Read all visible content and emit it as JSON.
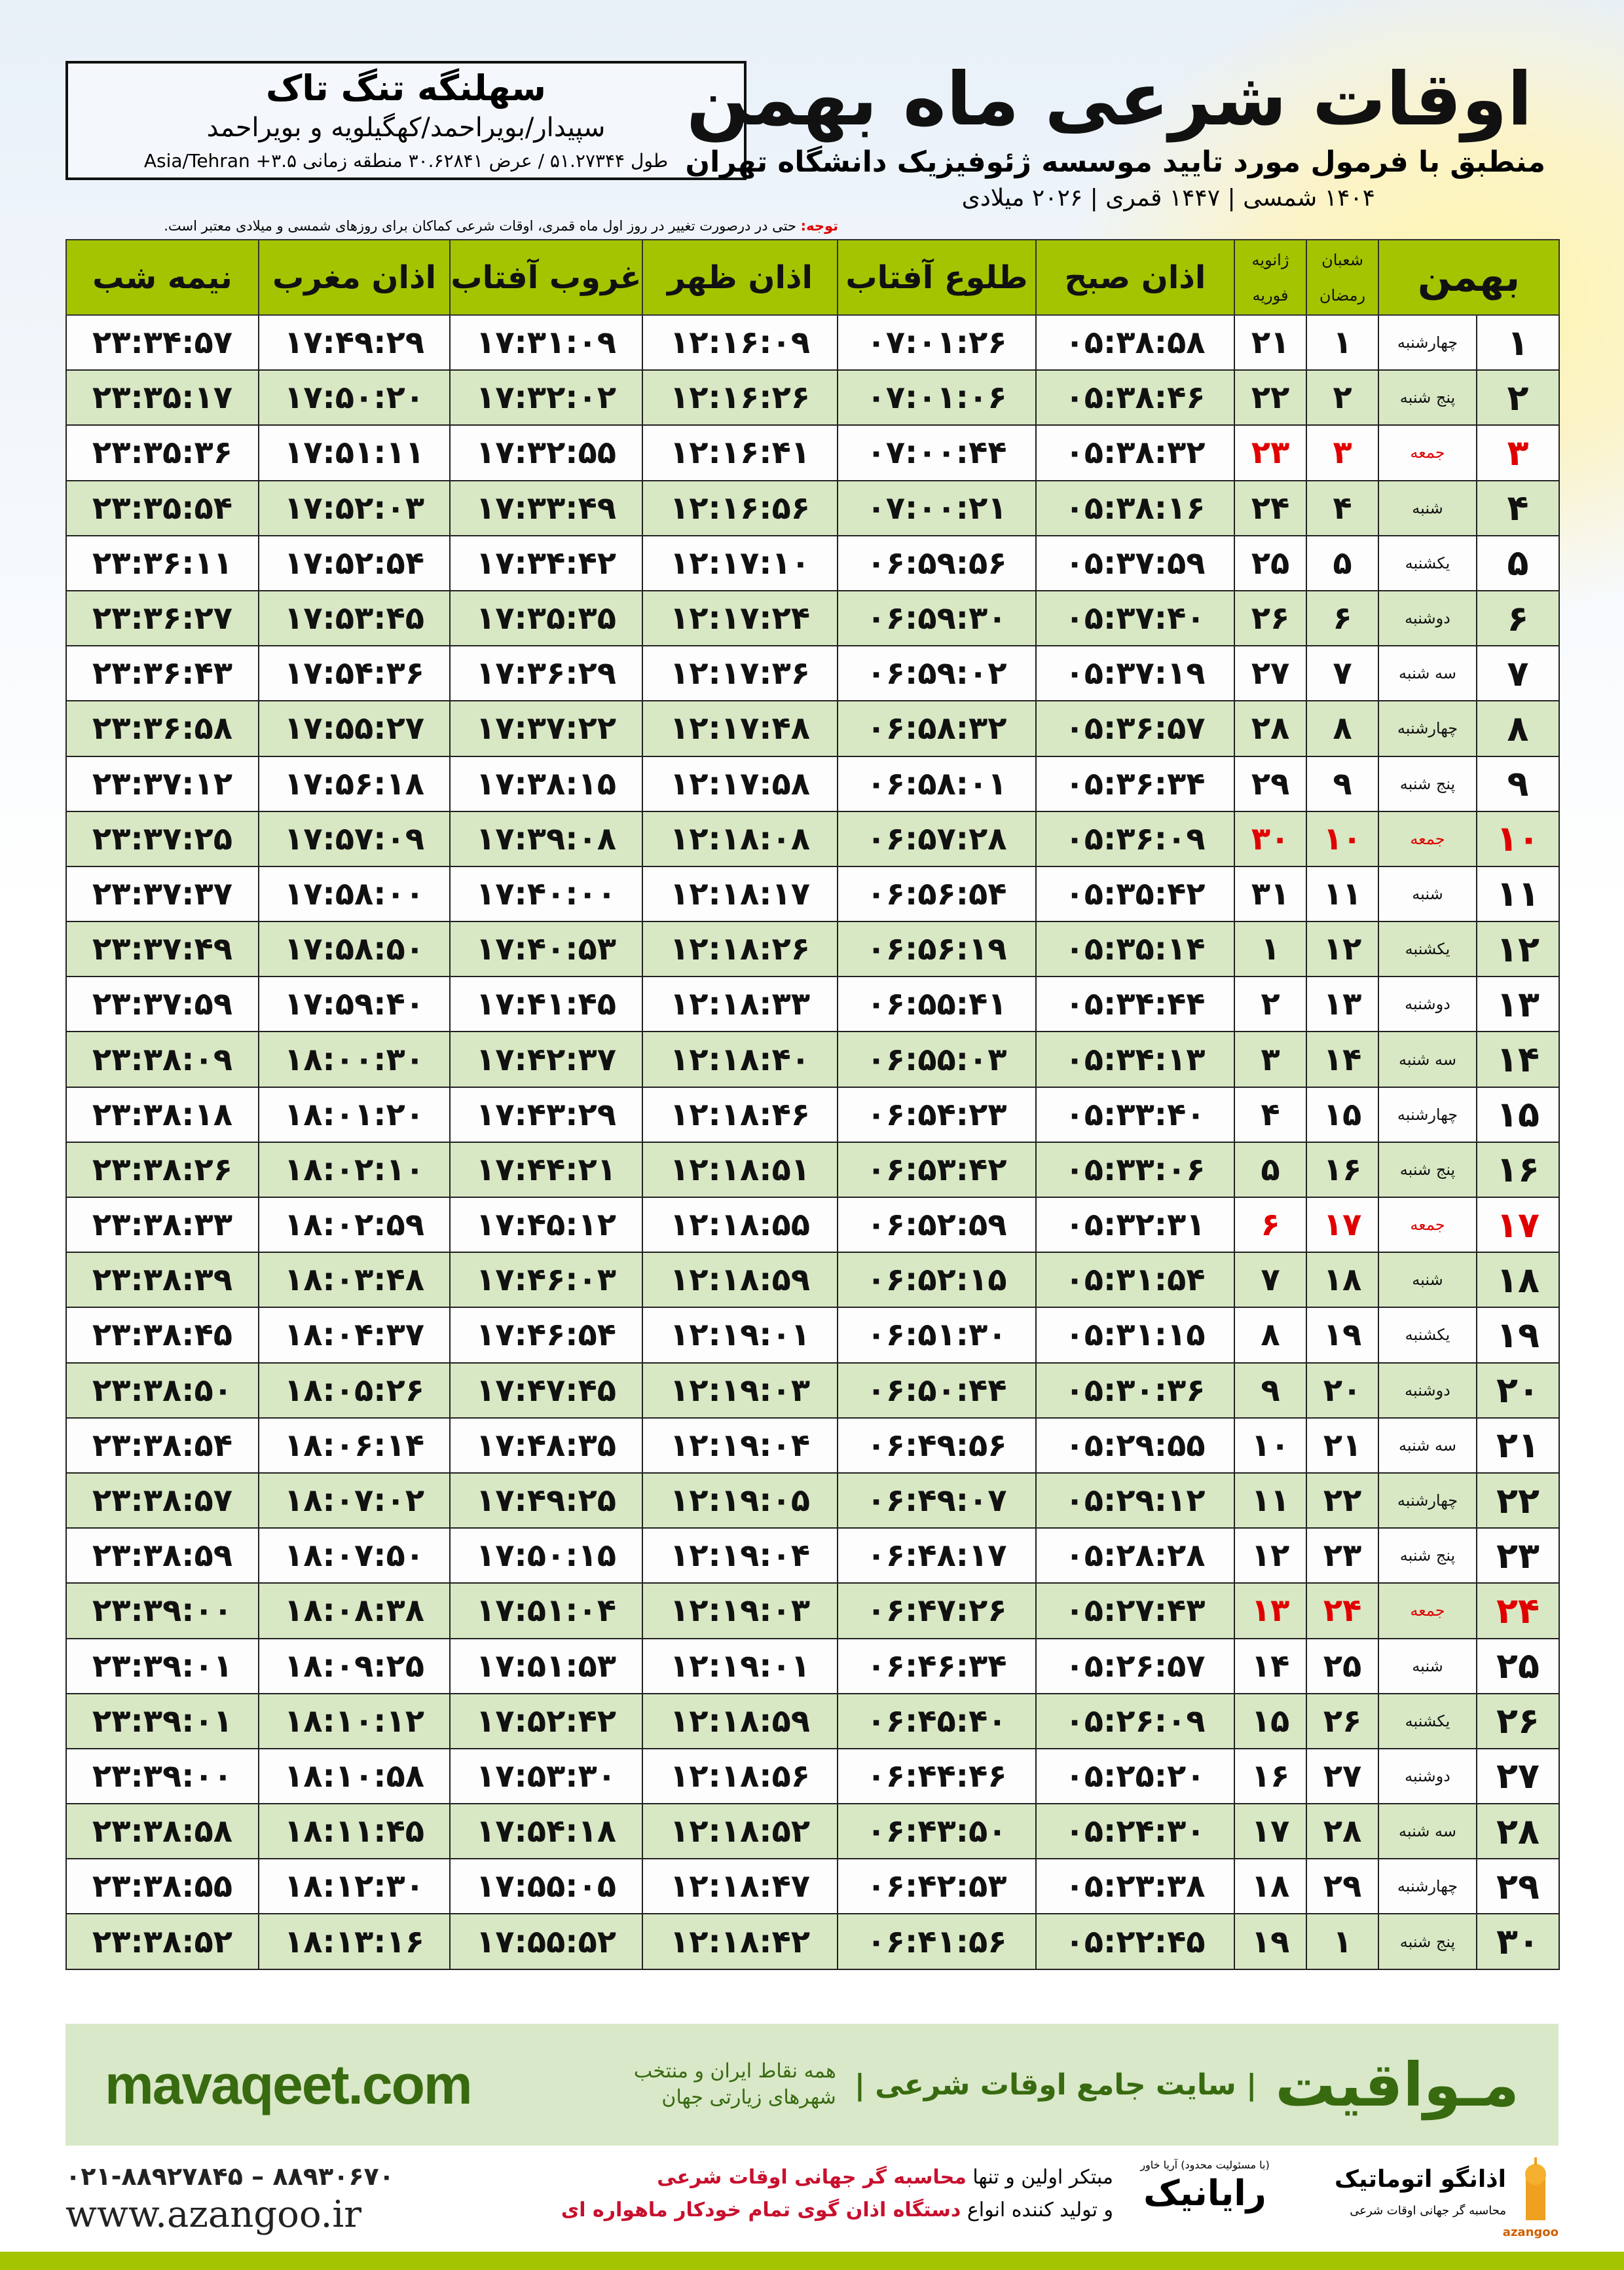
{
  "location": {
    "name": "سهلنگه تنگ تاک",
    "region": "سپیدار/بویراحمد/کهگیلویه و بویراحمد",
    "coords": "طول ۵۱.۲۷۳۴۴ / عرض ۳۰.۶۲۸۴۱ منطقه زمانی ۳.۵+ Asia/Tehran"
  },
  "header": {
    "title": "اوقات شرعی ماه بهمن",
    "subtitle": "منطبق با فرمول مورد تایید موسسه ژئوفیزیک دانشگاه تهران",
    "dates": "۱۴۰۴ شمسی | ۱۴۴۷ قمری | ۲۰۲۶ میلادی"
  },
  "note": {
    "label": "توجه:",
    "text": " حتی در درصورت تغییر در روز اول ماه قمری، اوقات شرعی کماکان برای روزهای شمسی و میلادی معتبر است."
  },
  "colors": {
    "header_green": "#a4c400",
    "row_green": "#d9e8c4",
    "holiday_red": "#e00000",
    "brand_green": "#386a10"
  },
  "table": {
    "headers": {
      "midnight": "نیمه شب",
      "maghrib": "اذان مغرب",
      "sunset": "غروب آفتاب",
      "dhuhr": "اذان ظهر",
      "sunrise": "طلوع آفتاب",
      "fajr": "اذان صبح",
      "greg_top": "ژانویه",
      "greg_bottom": "فوریه",
      "hijri_top": "شعبان",
      "hijri_bottom": "رمضان",
      "month": "بهمن"
    },
    "holiday_weekday": "جمعه",
    "rows": [
      [
        "۱",
        "چهارشنبه",
        "۱",
        "۲۱",
        "۰۵:۳۸:۵۸",
        "۰۷:۰۱:۲۶",
        "۱۲:۱۶:۰۹",
        "۱۷:۳۱:۰۹",
        "۱۷:۴۹:۲۹",
        "۲۳:۳۴:۵۷"
      ],
      [
        "۲",
        "پنج شنبه",
        "۲",
        "۲۲",
        "۰۵:۳۸:۴۶",
        "۰۷:۰۱:۰۶",
        "۱۲:۱۶:۲۶",
        "۱۷:۳۲:۰۲",
        "۱۷:۵۰:۲۰",
        "۲۳:۳۵:۱۷"
      ],
      [
        "۳",
        "جمعه",
        "۳",
        "۲۳",
        "۰۵:۳۸:۳۲",
        "۰۷:۰۰:۴۴",
        "۱۲:۱۶:۴۱",
        "۱۷:۳۲:۵۵",
        "۱۷:۵۱:۱۱",
        "۲۳:۳۵:۳۶"
      ],
      [
        "۴",
        "شنبه",
        "۴",
        "۲۴",
        "۰۵:۳۸:۱۶",
        "۰۷:۰۰:۲۱",
        "۱۲:۱۶:۵۶",
        "۱۷:۳۳:۴۹",
        "۱۷:۵۲:۰۳",
        "۲۳:۳۵:۵۴"
      ],
      [
        "۵",
        "یکشنبه",
        "۵",
        "۲۵",
        "۰۵:۳۷:۵۹",
        "۰۶:۵۹:۵۶",
        "۱۲:۱۷:۱۰",
        "۱۷:۳۴:۴۲",
        "۱۷:۵۲:۵۴",
        "۲۳:۳۶:۱۱"
      ],
      [
        "۶",
        "دوشنبه",
        "۶",
        "۲۶",
        "۰۵:۳۷:۴۰",
        "۰۶:۵۹:۳۰",
        "۱۲:۱۷:۲۴",
        "۱۷:۳۵:۳۵",
        "۱۷:۵۳:۴۵",
        "۲۳:۳۶:۲۷"
      ],
      [
        "۷",
        "سه شنبه",
        "۷",
        "۲۷",
        "۰۵:۳۷:۱۹",
        "۰۶:۵۹:۰۲",
        "۱۲:۱۷:۳۶",
        "۱۷:۳۶:۲۹",
        "۱۷:۵۴:۳۶",
        "۲۳:۳۶:۴۳"
      ],
      [
        "۸",
        "چهارشنبه",
        "۸",
        "۲۸",
        "۰۵:۳۶:۵۷",
        "۰۶:۵۸:۳۲",
        "۱۲:۱۷:۴۸",
        "۱۷:۳۷:۲۲",
        "۱۷:۵۵:۲۷",
        "۲۳:۳۶:۵۸"
      ],
      [
        "۹",
        "پنج شنبه",
        "۹",
        "۲۹",
        "۰۵:۳۶:۳۴",
        "۰۶:۵۸:۰۱",
        "۱۲:۱۷:۵۸",
        "۱۷:۳۸:۱۵",
        "۱۷:۵۶:۱۸",
        "۲۳:۳۷:۱۲"
      ],
      [
        "۱۰",
        "جمعه",
        "۱۰",
        "۳۰",
        "۰۵:۳۶:۰۹",
        "۰۶:۵۷:۲۸",
        "۱۲:۱۸:۰۸",
        "۱۷:۳۹:۰۸",
        "۱۷:۵۷:۰۹",
        "۲۳:۳۷:۲۵"
      ],
      [
        "۱۱",
        "شنبه",
        "۱۱",
        "۳۱",
        "۰۵:۳۵:۴۲",
        "۰۶:۵۶:۵۴",
        "۱۲:۱۸:۱۷",
        "۱۷:۴۰:۰۰",
        "۱۷:۵۸:۰۰",
        "۲۳:۳۷:۳۷"
      ],
      [
        "۱۲",
        "یکشنبه",
        "۱۲",
        "۱",
        "۰۵:۳۵:۱۴",
        "۰۶:۵۶:۱۹",
        "۱۲:۱۸:۲۶",
        "۱۷:۴۰:۵۳",
        "۱۷:۵۸:۵۰",
        "۲۳:۳۷:۴۹"
      ],
      [
        "۱۳",
        "دوشنبه",
        "۱۳",
        "۲",
        "۰۵:۳۴:۴۴",
        "۰۶:۵۵:۴۱",
        "۱۲:۱۸:۳۳",
        "۱۷:۴۱:۴۵",
        "۱۷:۵۹:۴۰",
        "۲۳:۳۷:۵۹"
      ],
      [
        "۱۴",
        "سه شنبه",
        "۱۴",
        "۳",
        "۰۵:۳۴:۱۳",
        "۰۶:۵۵:۰۳",
        "۱۲:۱۸:۴۰",
        "۱۷:۴۲:۳۷",
        "۱۸:۰۰:۳۰",
        "۲۳:۳۸:۰۹"
      ],
      [
        "۱۵",
        "چهارشنبه",
        "۱۵",
        "۴",
        "۰۵:۳۳:۴۰",
        "۰۶:۵۴:۲۳",
        "۱۲:۱۸:۴۶",
        "۱۷:۴۳:۲۹",
        "۱۸:۰۱:۲۰",
        "۲۳:۳۸:۱۸"
      ],
      [
        "۱۶",
        "پنج شنبه",
        "۱۶",
        "۵",
        "۰۵:۳۳:۰۶",
        "۰۶:۵۳:۴۲",
        "۱۲:۱۸:۵۱",
        "۱۷:۴۴:۲۱",
        "۱۸:۰۲:۱۰",
        "۲۳:۳۸:۲۶"
      ],
      [
        "۱۷",
        "جمعه",
        "۱۷",
        "۶",
        "۰۵:۳۲:۳۱",
        "۰۶:۵۲:۵۹",
        "۱۲:۱۸:۵۵",
        "۱۷:۴۵:۱۲",
        "۱۸:۰۲:۵۹",
        "۲۳:۳۸:۳۳"
      ],
      [
        "۱۸",
        "شنبه",
        "۱۸",
        "۷",
        "۰۵:۳۱:۵۴",
        "۰۶:۵۲:۱۵",
        "۱۲:۱۸:۵۹",
        "۱۷:۴۶:۰۳",
        "۱۸:۰۳:۴۸",
        "۲۳:۳۸:۳۹"
      ],
      [
        "۱۹",
        "یکشنبه",
        "۱۹",
        "۸",
        "۰۵:۳۱:۱۵",
        "۰۶:۵۱:۳۰",
        "۱۲:۱۹:۰۱",
        "۱۷:۴۶:۵۴",
        "۱۸:۰۴:۳۷",
        "۲۳:۳۸:۴۵"
      ],
      [
        "۲۰",
        "دوشنبه",
        "۲۰",
        "۹",
        "۰۵:۳۰:۳۶",
        "۰۶:۵۰:۴۴",
        "۱۲:۱۹:۰۳",
        "۱۷:۴۷:۴۵",
        "۱۸:۰۵:۲۶",
        "۲۳:۳۸:۵۰"
      ],
      [
        "۲۱",
        "سه شنبه",
        "۲۱",
        "۱۰",
        "۰۵:۲۹:۵۵",
        "۰۶:۴۹:۵۶",
        "۱۲:۱۹:۰۴",
        "۱۷:۴۸:۳۵",
        "۱۸:۰۶:۱۴",
        "۲۳:۳۸:۵۴"
      ],
      [
        "۲۲",
        "چهارشنبه",
        "۲۲",
        "۱۱",
        "۰۵:۲۹:۱۲",
        "۰۶:۴۹:۰۷",
        "۱۲:۱۹:۰۵",
        "۱۷:۴۹:۲۵",
        "۱۸:۰۷:۰۲",
        "۲۳:۳۸:۵۷"
      ],
      [
        "۲۳",
        "پنج شنبه",
        "۲۳",
        "۱۲",
        "۰۵:۲۸:۲۸",
        "۰۶:۴۸:۱۷",
        "۱۲:۱۹:۰۴",
        "۱۷:۵۰:۱۵",
        "۱۸:۰۷:۵۰",
        "۲۳:۳۸:۵۹"
      ],
      [
        "۲۴",
        "جمعه",
        "۲۴",
        "۱۳",
        "۰۵:۲۷:۴۳",
        "۰۶:۴۷:۲۶",
        "۱۲:۱۹:۰۳",
        "۱۷:۵۱:۰۴",
        "۱۸:۰۸:۳۸",
        "۲۳:۳۹:۰۰"
      ],
      [
        "۲۵",
        "شنبه",
        "۲۵",
        "۱۴",
        "۰۵:۲۶:۵۷",
        "۰۶:۴۶:۳۴",
        "۱۲:۱۹:۰۱",
        "۱۷:۵۱:۵۳",
        "۱۸:۰۹:۲۵",
        "۲۳:۳۹:۰۱"
      ],
      [
        "۲۶",
        "یکشنبه",
        "۲۶",
        "۱۵",
        "۰۵:۲۶:۰۹",
        "۰۶:۴۵:۴۰",
        "۱۲:۱۸:۵۹",
        "۱۷:۵۲:۴۲",
        "۱۸:۱۰:۱۲",
        "۲۳:۳۹:۰۱"
      ],
      [
        "۲۷",
        "دوشنبه",
        "۲۷",
        "۱۶",
        "۰۵:۲۵:۲۰",
        "۰۶:۴۴:۴۶",
        "۱۲:۱۸:۵۶",
        "۱۷:۵۳:۳۰",
        "۱۸:۱۰:۵۸",
        "۲۳:۳۹:۰۰"
      ],
      [
        "۲۸",
        "سه شنبه",
        "۲۸",
        "۱۷",
        "۰۵:۲۴:۳۰",
        "۰۶:۴۳:۵۰",
        "۱۲:۱۸:۵۲",
        "۱۷:۵۴:۱۸",
        "۱۸:۱۱:۴۵",
        "۲۳:۳۸:۵۸"
      ],
      [
        "۲۹",
        "چهارشنبه",
        "۲۹",
        "۱۸",
        "۰۵:۲۳:۳۸",
        "۰۶:۴۲:۵۳",
        "۱۲:۱۸:۴۷",
        "۱۷:۵۵:۰۵",
        "۱۸:۱۲:۳۰",
        "۲۳:۳۸:۵۵"
      ],
      [
        "۳۰",
        "پنج شنبه",
        "۱",
        "۱۹",
        "۰۵:۲۲:۴۵",
        "۰۶:۴۱:۵۶",
        "۱۲:۱۸:۴۲",
        "۱۷:۵۵:۵۲",
        "۱۸:۱۳:۱۶",
        "۲۳:۳۸:۵۲"
      ]
    ]
  },
  "promo": {
    "url": "mavaqeet.com",
    "tagline": "همه نقاط ایران و منتخب شهرهای زیارتی جهان",
    "slogan": "| سایت جامع اوقات شرعی |",
    "brand": "مـواقیت"
  },
  "ad": {
    "phone": "۰۲۱-۸۸۹۲۷۸۴۵ – ۸۸۹۳۰۶۷۰",
    "website": "www.azangoo.ir",
    "line1_a": "مبتکر اولین و تنها ",
    "line1_b": "محاسبه گر جهانی اوقات شرعی",
    "line2_a": "و تولید کننده انواع ",
    "line2_b": "دستگاه اذان گوی تمام خودکار ماهواره ای",
    "logo_rayanik": "رایانیک",
    "logo_rayanik_sub": "(با مسئولیت محدود) آریا خاور",
    "logo_azangoo": "اذانگو اتوماتیک",
    "logo_azangoo_en": "azangoo",
    "logo_azangoo_sub": "محاسبه گر جهانی اوقات شرعی"
  }
}
